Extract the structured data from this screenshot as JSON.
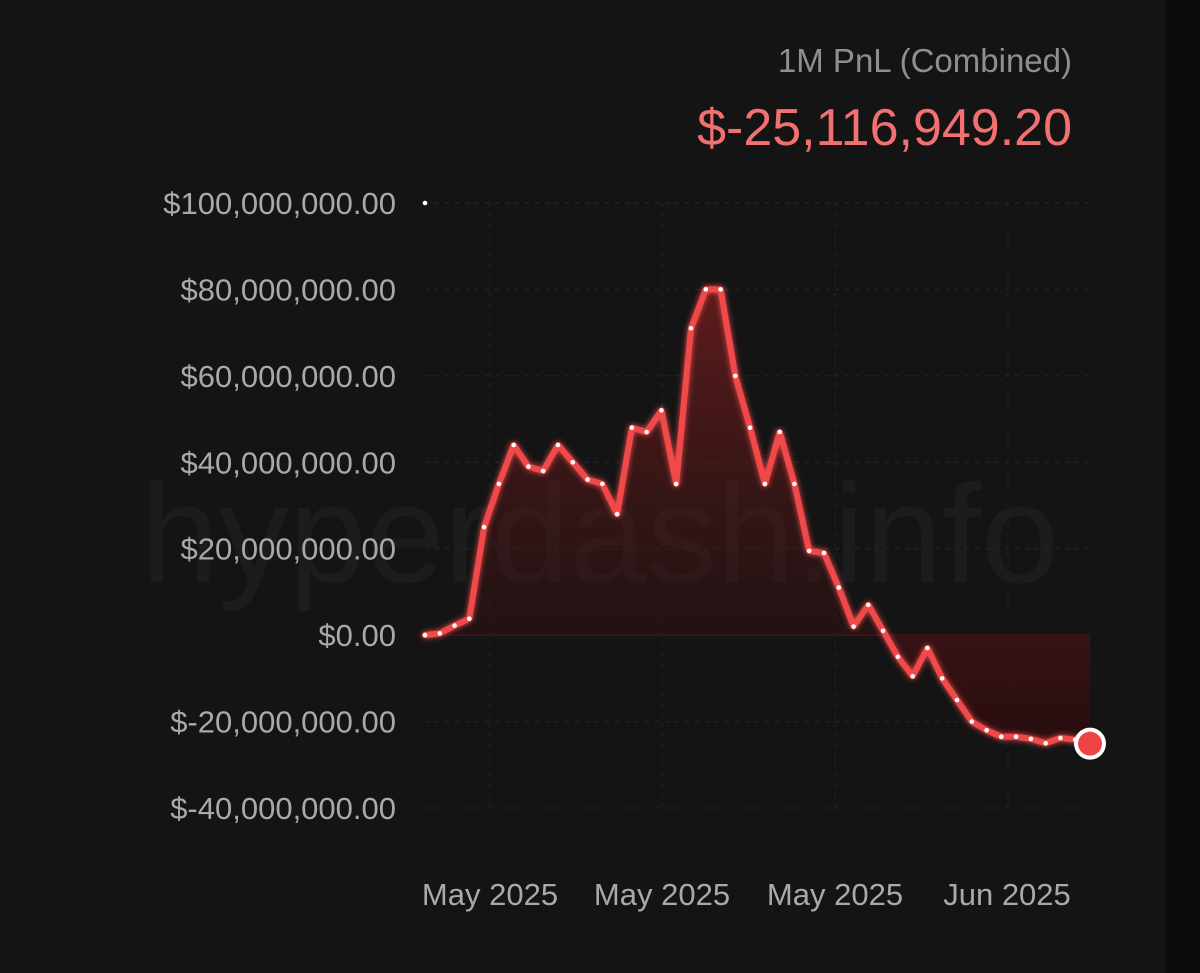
{
  "header": {
    "label": "1M PnL (Combined)",
    "value": "$-25,116,949.20"
  },
  "watermark": "hyperdash.info",
  "colors": {
    "line": "#ef4a4a",
    "area": "#8a1f1f",
    "marker": "#ef4444",
    "label_value": "#f2706f",
    "tick_text": "#a9a9ad",
    "background": "#141415"
  },
  "chart_data": {
    "type": "area",
    "title": "1M PnL (Combined)",
    "xlabel": "",
    "ylabel": "",
    "ylim": [
      -40000000,
      100000000
    ],
    "yticks": [
      100000000,
      80000000,
      60000000,
      40000000,
      20000000,
      0,
      -20000000,
      -40000000
    ],
    "ytick_labels": [
      "$100,000,000.00",
      "$80,000,000.00",
      "$60,000,000.00",
      "$40,000,000.00",
      "$20,000,000.00",
      "$0.00",
      "$-20,000,000.00",
      "$-40,000,000.00"
    ],
    "xtick_labels": [
      "May 2025",
      "May 2025",
      "May 2025",
      "Jun 2025"
    ],
    "grid": true,
    "legend": "none",
    "series": [
      {
        "y": [
          0,
          400000,
          2200000,
          3800000,
          25000000,
          35000000,
          44000000,
          39000000,
          38000000,
          44000000,
          40000000,
          36000000,
          35000000,
          28000000,
          48000000,
          47000000,
          52000000,
          35000000,
          71000000,
          80000000,
          80000000,
          60000000,
          48000000,
          35000000,
          47000000,
          35000000,
          19500000,
          19000000,
          11000000,
          2000000,
          7000000,
          1000000,
          -5000000,
          -9500000,
          -3000000,
          -10000000,
          -15000000,
          -20000000,
          -22000000,
          -23500000,
          -23500000,
          -24000000,
          -25000000,
          -23800000,
          -24200000,
          -25116949.2
        ]
      }
    ]
  }
}
